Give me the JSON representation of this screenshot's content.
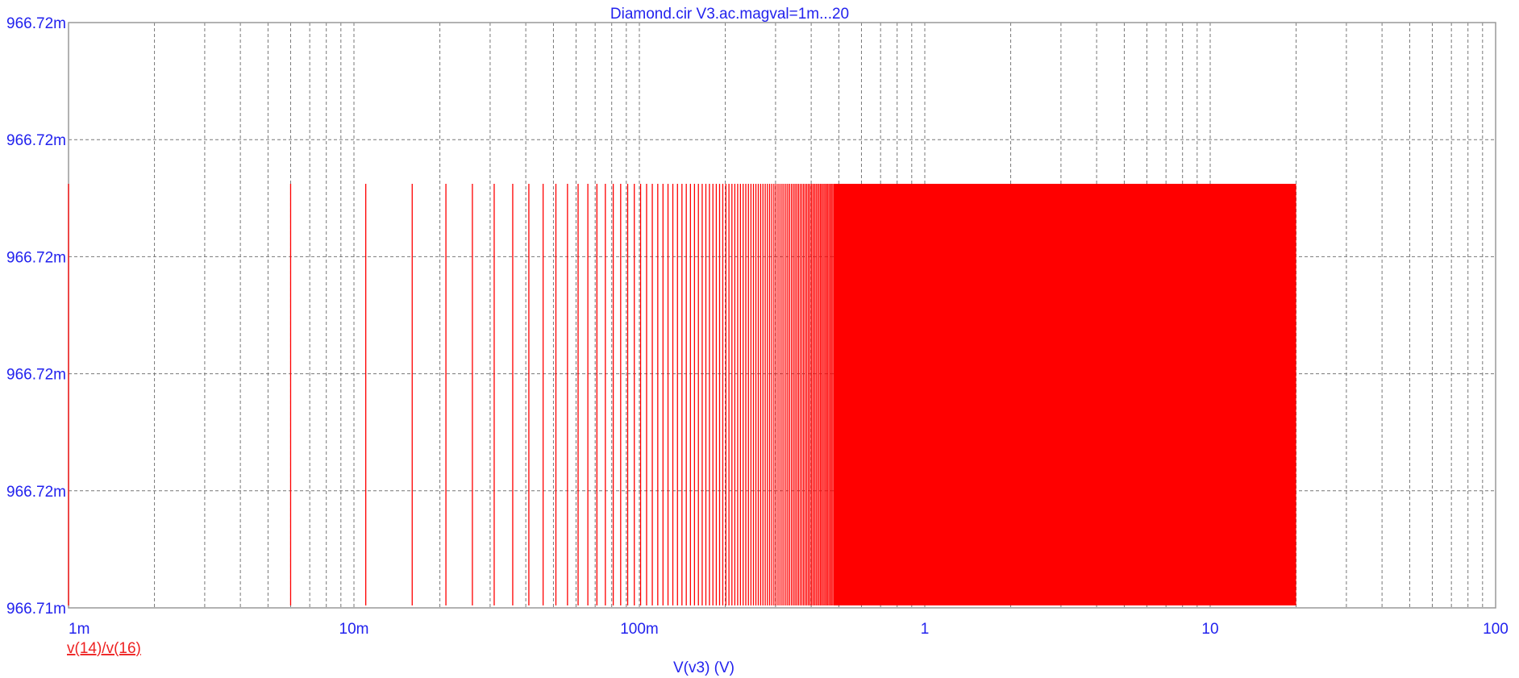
{
  "chart_data": {
    "type": "line",
    "title": "Diamond.cir V3.ac.magval=1m...20",
    "xlabel": "V(v3) (V)",
    "ylabel": "",
    "x_scale": "log",
    "xlim": [
      0.001,
      100
    ],
    "x_ticks": [
      {
        "value": 0.001,
        "label": "1m"
      },
      {
        "value": 0.01,
        "label": "10m"
      },
      {
        "value": 0.1,
        "label": "100m"
      },
      {
        "value": 1,
        "label": "1"
      },
      {
        "value": 10,
        "label": "10"
      },
      {
        "value": 100,
        "label": "100"
      }
    ],
    "y_ticks": [
      "966.72m",
      "966.72m",
      "966.72m",
      "966.72m",
      "966.72m",
      "966.71m"
    ],
    "grid": true,
    "series": [
      {
        "name": "v(14)/v(16)",
        "color": "#ff0000",
        "sweep_start": 0.001,
        "sweep_stop": 20,
        "sweep_step": 0.005,
        "pulse_top": "966.72m",
        "pulse_bottom": "966.71m",
        "shape": "vertical spikes at each sweep point"
      }
    ]
  },
  "colors": {
    "axis_text": "#2222ee",
    "trace": "#ff0000",
    "grid": "#777777",
    "frame": "#999999",
    "background": "#ffffff"
  }
}
